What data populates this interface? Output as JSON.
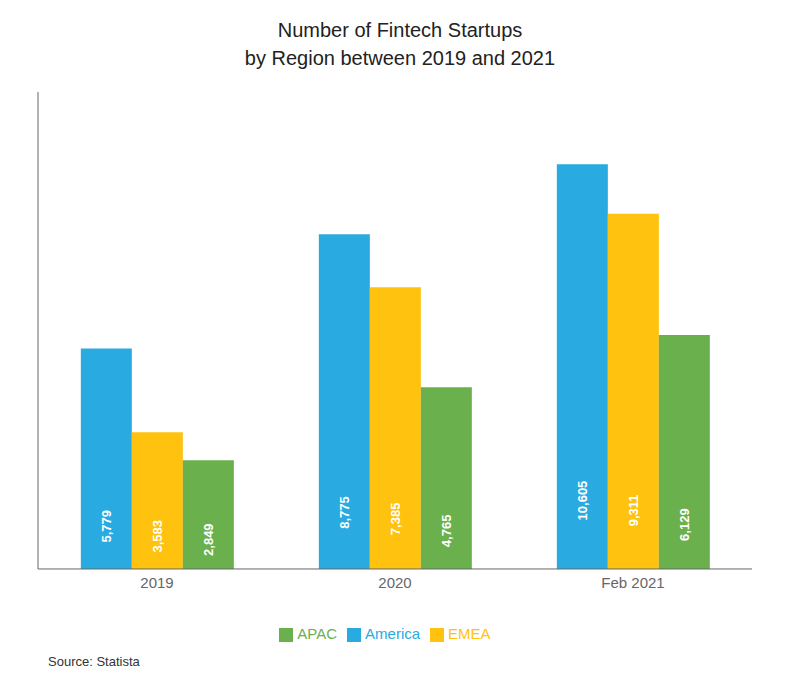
{
  "chart_data": {
    "type": "bar",
    "title": "Number of Fintech Startups",
    "subtitle": "by Region between 2019 and 2021",
    "categories": [
      "2019",
      "2020",
      "Feb 2021"
    ],
    "series": [
      {
        "name": "America",
        "color": "#29ABE2",
        "values": [
          5779,
          8775,
          10605
        ],
        "value_labels": [
          "5,779",
          "8,775",
          "10,605"
        ]
      },
      {
        "name": "EMEA",
        "color": "#FFC20E",
        "values": [
          3583,
          7385,
          9311
        ],
        "value_labels": [
          "3,583",
          "7,385",
          "9,311"
        ]
      },
      {
        "name": "APAC",
        "color": "#6AB04C",
        "values": [
          2849,
          4765,
          6129
        ],
        "value_labels": [
          "2,849",
          "4,765",
          "6,129"
        ]
      }
    ],
    "ylim": [
      0,
      12500
    ],
    "grid": false,
    "legend": "bottom",
    "data_labels": true,
    "tick_labels": "x",
    "annotations": [
      "Source: Statista"
    ]
  }
}
